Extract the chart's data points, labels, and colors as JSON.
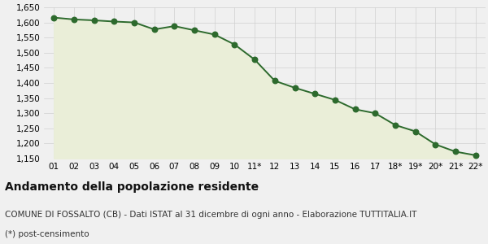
{
  "x_labels": [
    "01",
    "02",
    "03",
    "04",
    "05",
    "06",
    "07",
    "08",
    "09",
    "10",
    "11*",
    "12",
    "13",
    "14",
    "15",
    "16",
    "17",
    "18*",
    "19*",
    "20*",
    "21*",
    "22*"
  ],
  "values": [
    1616,
    1610,
    1607,
    1603,
    1600,
    1577,
    1588,
    1574,
    1560,
    1527,
    1477,
    1407,
    1384,
    1364,
    1344,
    1313,
    1300,
    1261,
    1240,
    1197,
    1173,
    1161
  ],
  "ylim": [
    1150,
    1650
  ],
  "yticks": [
    1150,
    1200,
    1250,
    1300,
    1350,
    1400,
    1450,
    1500,
    1550,
    1600,
    1650
  ],
  "line_color": "#2d6a2d",
  "fill_color": "#eaeed8",
  "marker_color": "#2d6a2d",
  "bg_color": "#f0f0f0",
  "plot_bg_color": "#f0f0f0",
  "grid_color": "#d0d0d0",
  "title": "Andamento della popolazione residente",
  "subtitle": "COMUNE DI FOSSALTO (CB) - Dati ISTAT al 31 dicembre di ogni anno - Elaborazione TUTTITALIA.IT",
  "footnote": "(*) post-censimento",
  "title_fontsize": 10,
  "subtitle_fontsize": 7.5,
  "footnote_fontsize": 7.5,
  "tick_fontsize": 7.5,
  "line_width": 1.4,
  "marker_size": 22
}
